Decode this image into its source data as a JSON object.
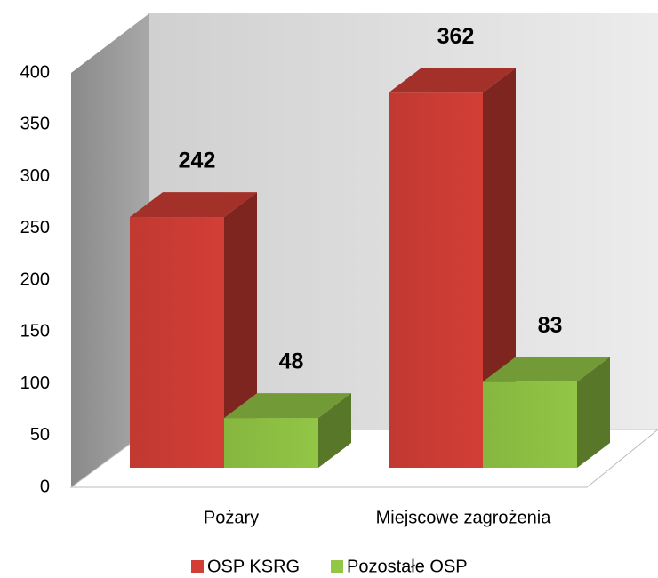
{
  "chart_data": {
    "type": "bar3d",
    "categories": [
      "Pożary",
      "Miejscowe zagrożenia"
    ],
    "series": [
      {
        "name": "OSP KSRG",
        "color": "#d23e36",
        "values": [
          242,
          362
        ]
      },
      {
        "name": "Pozostałe OSP",
        "color": "#92c645",
        "values": [
          48,
          83
        ]
      }
    ],
    "ylim": [
      0,
      400
    ],
    "yticks": [
      0,
      50,
      100,
      150,
      200,
      250,
      300,
      350,
      400
    ],
    "legend": "bottom"
  }
}
